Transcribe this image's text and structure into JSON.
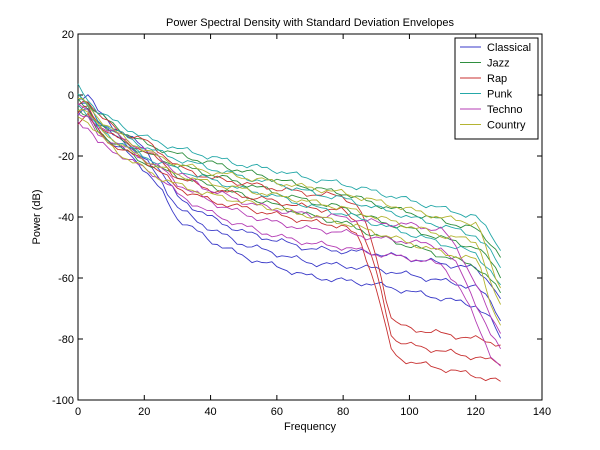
{
  "chart_data": {
    "type": "line",
    "title": "Power Spectral Density with Standard Deviation Envelopes",
    "xlabel": "Frequency",
    "ylabel": "Power (dB)",
    "xlim": [
      0,
      140
    ],
    "ylim": [
      -100,
      20
    ],
    "xticks": [
      0,
      20,
      40,
      60,
      80,
      100,
      120,
      140
    ],
    "yticks": [
      -100,
      -80,
      -60,
      -40,
      -20,
      0,
      20
    ],
    "grid": false,
    "legend_position": "top-right",
    "series": [
      {
        "name": "Classical",
        "color": "#3a3ac8",
        "x": [
          0,
          3,
          6,
          10,
          15,
          20,
          25,
          30,
          40,
          50,
          60,
          70,
          80,
          90,
          100,
          110,
          120,
          125,
          128
        ],
        "y": [
          -4,
          -2,
          -8,
          -13,
          -16,
          -21,
          -28,
          -37,
          -44,
          -49,
          -52,
          -55,
          -56,
          -57,
          -59,
          -61,
          -63,
          -68,
          -75
        ]
      },
      {
        "name": "Jazz",
        "color": "#2f8f3f",
        "x": [
          0,
          3,
          6,
          10,
          15,
          20,
          25,
          30,
          40,
          50,
          60,
          70,
          80,
          90,
          100,
          110,
          120,
          125,
          128
        ],
        "y": [
          -2,
          -5,
          -9,
          -12,
          -16,
          -19,
          -21,
          -23,
          -26,
          -29,
          -32,
          -35,
          -37,
          -41,
          -44,
          -47,
          -50,
          -55,
          -60
        ]
      },
      {
        "name": "Rap",
        "color": "#c83232",
        "x": [
          0,
          3,
          6,
          10,
          15,
          20,
          25,
          30,
          40,
          50,
          60,
          70,
          80,
          85,
          90,
          93,
          95,
          100,
          110,
          120,
          128
        ],
        "y": [
          -6,
          -4,
          -9,
          -13,
          -16,
          -18,
          -22,
          -27,
          -31,
          -33,
          -35,
          -37,
          -38,
          -42,
          -58,
          -72,
          -80,
          -82,
          -84,
          -86,
          -88
        ]
      },
      {
        "name": "Punk",
        "color": "#25a8a8",
        "x": [
          0,
          3,
          6,
          10,
          15,
          20,
          25,
          30,
          40,
          50,
          60,
          70,
          80,
          90,
          100,
          110,
          120,
          125,
          128
        ],
        "y": [
          0,
          -4,
          -8,
          -11,
          -14,
          -17,
          -19,
          -21,
          -24,
          -27,
          -29,
          -32,
          -34,
          -37,
          -40,
          -43,
          -46,
          -52,
          -58
        ]
      },
      {
        "name": "Techno",
        "color": "#b43cb4",
        "x": [
          0,
          3,
          6,
          10,
          15,
          20,
          25,
          30,
          40,
          50,
          60,
          70,
          80,
          90,
          100,
          110,
          115,
          120,
          125,
          128
        ],
        "y": [
          -6,
          -8,
          -13,
          -15,
          -18,
          -21,
          -24,
          -29,
          -35,
          -39,
          -42,
          -44,
          -45,
          -47,
          -48,
          -50,
          -57,
          -68,
          -80,
          -84
        ]
      },
      {
        "name": "Country",
        "color": "#b4b432",
        "x": [
          0,
          3,
          6,
          10,
          15,
          20,
          25,
          30,
          40,
          50,
          60,
          70,
          80,
          90,
          100,
          110,
          120,
          122,
          125,
          128
        ],
        "y": [
          -4,
          -6,
          -10,
          -14,
          -18,
          -21,
          -24,
          -26,
          -29,
          -31,
          -33,
          -35,
          -37,
          -40,
          -43,
          -46,
          -48,
          -52,
          -64,
          -70
        ]
      }
    ]
  }
}
